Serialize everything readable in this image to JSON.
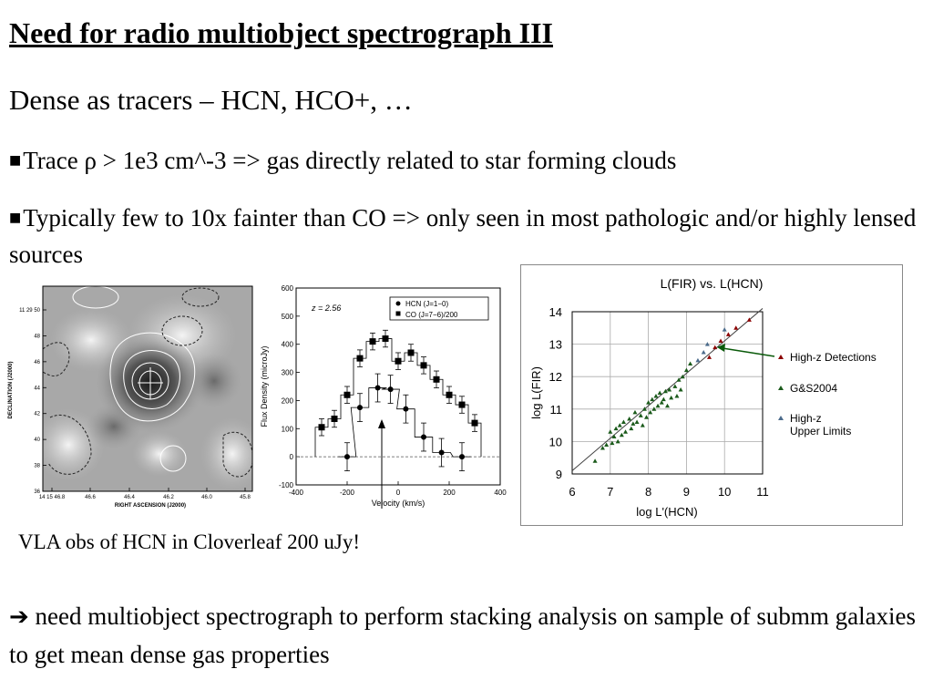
{
  "title": "Need for radio multiobject spectrograph III",
  "subtitle": "Dense as tracers – HCN, HCO+, …",
  "bullets": [
    {
      "mark": "■",
      "text": "Trace ρ > 1e3 cm^-3  => gas directly related to star forming clouds"
    },
    {
      "mark": "■",
      "text": "Typically few to 10x fainter than CO => only seen in most pathologic and/or highly lensed sources"
    }
  ],
  "caption": "VLA obs of HCN in Cloverleaf   200 uJy!",
  "conclusion": {
    "arrow": "➔",
    "text": " need multiobject spectrograph to perform stacking analysis on sample of submm galaxies to get mean dense gas properties"
  },
  "contour_map": {
    "ylabel": "DECLINATION (J2000)",
    "xlabel": "RIGHT ASCENSION (J2000)",
    "y_ticks": [
      "11 29 50",
      "48",
      "46",
      "44",
      "42",
      "40",
      "38",
      "36"
    ],
    "x_ticks": [
      "14 15 46.8",
      "46.6",
      "46.4",
      "46.2",
      "46.0",
      "45.8"
    ]
  },
  "chart_data": [
    {
      "type": "scatter",
      "annotation": "z = 2.56",
      "xlabel": "Velocity (km/s)",
      "ylabel": "Flux Density (microJy)",
      "xlim": [
        -400,
        400
      ],
      "ylim": [
        -100,
        600
      ],
      "x_ticks": [
        "-400",
        "-200",
        "0",
        "200",
        "400"
      ],
      "y_ticks": [
        "-100",
        "0",
        "100",
        "200",
        "300",
        "400",
        "500",
        "600"
      ],
      "series": [
        {
          "name": "HCN (J=1−0)",
          "marker": "circle",
          "x": [
            -200,
            -150,
            -80,
            -30,
            30,
            100,
            170,
            250
          ],
          "y": [
            0,
            175,
            245,
            240,
            170,
            70,
            15,
            0
          ],
          "err": [
            50,
            50,
            50,
            50,
            50,
            50,
            50,
            50
          ]
        },
        {
          "name": "CO (J=7−6)/200",
          "marker": "square",
          "x": [
            -300,
            -250,
            -200,
            -150,
            -100,
            -50,
            0,
            50,
            100,
            150,
            200,
            250,
            300
          ],
          "y": [
            105,
            135,
            220,
            350,
            410,
            420,
            340,
            370,
            325,
            275,
            220,
            185,
            120
          ],
          "err": [
            30,
            30,
            30,
            30,
            30,
            30,
            30,
            30,
            30,
            30,
            30,
            30,
            30
          ]
        }
      ]
    },
    {
      "type": "scatter",
      "title": "L(FIR) vs. L(HCN)",
      "xlabel": "log L'(HCN)",
      "ylabel": "log L(FIR)",
      "xlim": [
        6,
        11
      ],
      "ylim": [
        9,
        14
      ],
      "x_ticks": [
        "6",
        "7",
        "8",
        "9",
        "10",
        "11"
      ],
      "y_ticks": [
        "9",
        "10",
        "11",
        "12",
        "13",
        "14"
      ],
      "grid": true,
      "legend": [
        {
          "label": "High-z Detections",
          "color": "#8b0000"
        },
        {
          "label": "G&S2004",
          "color": "#1a5a1a"
        },
        {
          "label": "High-z Upper Limits",
          "color": "#4b6b8b"
        }
      ],
      "fit_line": {
        "x": [
          6,
          11
        ],
        "y": [
          9.1,
          14.1
        ]
      },
      "series": [
        {
          "name": "G&S2004",
          "color": "#1a5a1a",
          "x": [
            6.6,
            6.8,
            6.9,
            7.0,
            7.05,
            7.1,
            7.15,
            7.2,
            7.25,
            7.3,
            7.35,
            7.4,
            7.5,
            7.55,
            7.6,
            7.65,
            7.7,
            7.8,
            7.85,
            7.9,
            7.95,
            8.0,
            8.05,
            8.1,
            8.15,
            8.2,
            8.25,
            8.3,
            8.35,
            8.4,
            8.45,
            8.5,
            8.55,
            8.6,
            8.7,
            8.75,
            8.8,
            8.85,
            8.9,
            9.0,
            9.1
          ],
          "y": [
            9.4,
            9.8,
            9.9,
            10.3,
            9.95,
            10.15,
            10.4,
            10.0,
            10.5,
            10.2,
            10.6,
            10.3,
            10.7,
            10.4,
            10.55,
            10.9,
            10.6,
            10.8,
            10.5,
            11.0,
            10.75,
            11.2,
            10.9,
            11.3,
            11.0,
            11.4,
            11.1,
            11.5,
            11.2,
            11.3,
            11.55,
            11.1,
            11.6,
            11.35,
            11.7,
            11.4,
            11.9,
            11.6,
            12.0,
            12.2,
            12.4
          ]
        },
        {
          "name": "High-z Detections",
          "color": "#8b0000",
          "x": [
            9.6,
            9.75,
            9.9,
            10.1,
            10.3,
            10.65
          ],
          "y": [
            12.6,
            12.9,
            13.1,
            13.3,
            13.5,
            13.75
          ]
        },
        {
          "name": "High-z Upper Limits",
          "color": "#4b6b8b",
          "x": [
            9.3,
            9.45,
            9.55,
            10.0
          ],
          "y": [
            12.5,
            12.75,
            13.0,
            13.45
          ]
        }
      ]
    }
  ]
}
